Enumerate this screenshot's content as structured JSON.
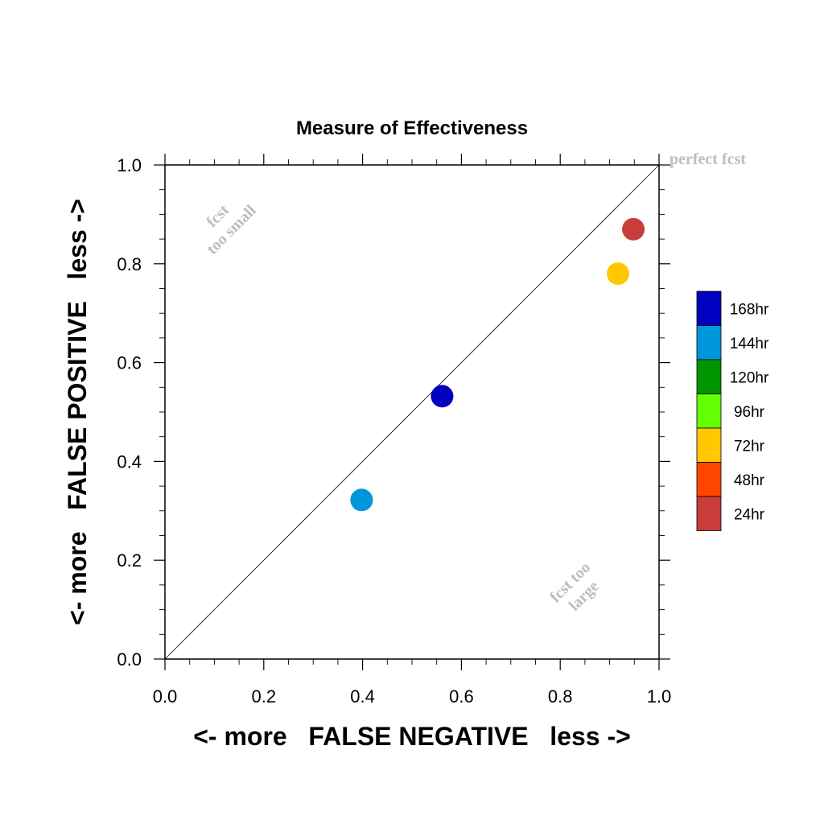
{
  "chart_data": {
    "type": "scatter",
    "title": "Measure of Effectiveness",
    "xlabel": "<- more   FALSE NEGATIVE   less ->",
    "ylabel": "<- more   FALSE POSITIVE   less ->",
    "xlim": [
      0.0,
      1.0
    ],
    "ylim": [
      0.0,
      1.0
    ],
    "x_ticks": [
      "0.0",
      "0.2",
      "0.4",
      "0.6",
      "0.8",
      "1.0"
    ],
    "y_ticks": [
      "0.0",
      "0.2",
      "0.4",
      "0.6",
      "0.8",
      "1.0"
    ],
    "grid": false,
    "reference_line": "diagonal y = x",
    "annotations": {
      "perfect": "perfect fcst",
      "too_small_1": "fcst",
      "too_small_2": "too small",
      "too_large_1": "fcst too",
      "too_large_2": "large"
    },
    "legend": {
      "placement": "right",
      "entries": [
        {
          "label": "168hr",
          "color": "#0000c0"
        },
        {
          "label": "144hr",
          "color": "#0096dc"
        },
        {
          "label": "120hr",
          "color": "#009600"
        },
        {
          "label": "96hr",
          "color": "#64ff00"
        },
        {
          "label": "72hr",
          "color": "#ffc800"
        },
        {
          "label": "48hr",
          "color": "#ff4600"
        },
        {
          "label": "24hr",
          "color": "#c83c3c"
        }
      ]
    },
    "points": [
      {
        "lead": "24hr",
        "x": 0.948,
        "y": 0.87
      },
      {
        "lead": "72hr",
        "x": 0.917,
        "y": 0.78
      },
      {
        "lead": "168hr",
        "x": 0.561,
        "y": 0.532
      },
      {
        "lead": "144hr",
        "x": 0.398,
        "y": 0.322
      }
    ]
  }
}
